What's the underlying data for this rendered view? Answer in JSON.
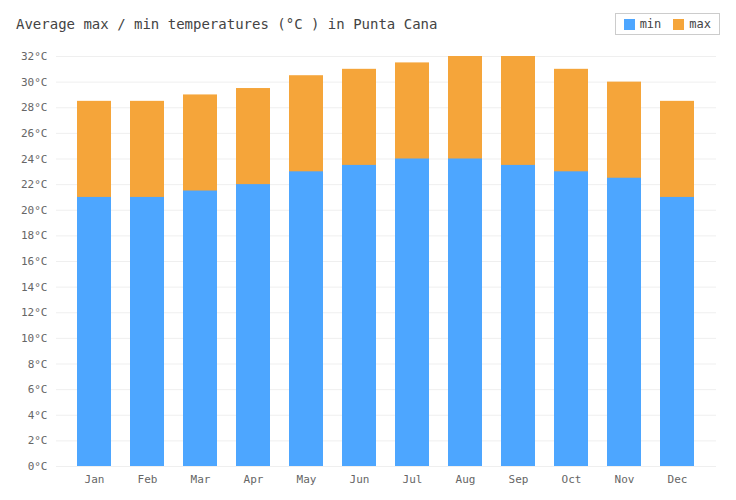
{
  "chart_data": {
    "type": "bar",
    "title": "Average max / min temperatures (°C ) in Punta Cana",
    "categories": [
      "Jan",
      "Feb",
      "Mar",
      "Apr",
      "May",
      "Jun",
      "Jul",
      "Aug",
      "Sep",
      "Oct",
      "Nov",
      "Dec"
    ],
    "series": [
      {
        "name": "min",
        "color": "#4da6ff",
        "values": [
          21,
          21,
          21.5,
          22,
          23,
          23.5,
          24,
          24,
          23.5,
          23,
          22.5,
          21
        ]
      },
      {
        "name": "max",
        "color": "#f5a53a",
        "values": [
          28.5,
          28.5,
          29,
          29.5,
          30.5,
          31,
          31.5,
          32,
          32,
          31,
          30,
          28.5
        ]
      }
    ],
    "stacked": false,
    "ylim": [
      0,
      32
    ],
    "yticks": [
      {
        "value": 0,
        "label": "0°C"
      },
      {
        "value": 2,
        "label": "2°C"
      },
      {
        "value": 4,
        "label": "4°C"
      },
      {
        "value": 6,
        "label": "6°C"
      },
      {
        "value": 8,
        "label": "8°C"
      },
      {
        "value": 10,
        "label": "10°C"
      },
      {
        "value": 12,
        "label": "12°C"
      },
      {
        "value": 14,
        "label": "14°C"
      },
      {
        "value": 16,
        "label": "16°C"
      },
      {
        "value": 18,
        "label": "18°C"
      },
      {
        "value": 20,
        "label": "20°C"
      },
      {
        "value": 22,
        "label": "22°C"
      },
      {
        "value": 24,
        "label": "24°C"
      },
      {
        "value": 26,
        "label": "26°C"
      },
      {
        "value": 28,
        "label": "28°C"
      },
      {
        "value": 30,
        "label": "30°C"
      },
      {
        "value": 32,
        "label": "32°C"
      }
    ],
    "grid": true,
    "legend": "upper right"
  }
}
